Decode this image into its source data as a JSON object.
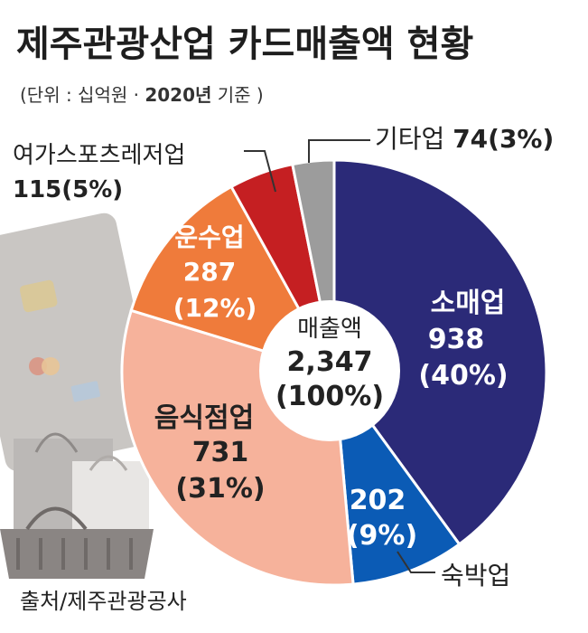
{
  "title": "제주관광산업 카드매출액 현황",
  "subtitle_prefix": "(단위 : 십억원 · ",
  "subtitle_year": "2020년",
  "subtitle_suffix": " 기준 )",
  "source": "출처/제주관광공사",
  "center": {
    "label": "매출액",
    "value": "2,347",
    "pct": "(100%)"
  },
  "colors": {
    "소매업": "#2b2a78",
    "숙박업": "#0b5bb5",
    "음식점업": "#f6b29b",
    "운수업": "#ef7b3b",
    "여가스포츠레저업": "#c51f22",
    "기타업": "#9c9c9c"
  },
  "chart_data": {
    "type": "pie",
    "title": "제주관광산업 카드매출액 현황",
    "unit": "십억원",
    "categories": [
      "소매업",
      "숙박업",
      "음식점업",
      "운수업",
      "여가스포츠레저업",
      "기타업"
    ],
    "values": [
      938,
      202,
      731,
      287,
      115,
      74
    ],
    "labels": [
      "938",
      "202",
      "731",
      "287",
      "115",
      "74"
    ],
    "percents": [
      "(40%)",
      "(9%)",
      "(31%)",
      "(12%)",
      "(5%)",
      "(3%)"
    ],
    "total": 2347
  }
}
